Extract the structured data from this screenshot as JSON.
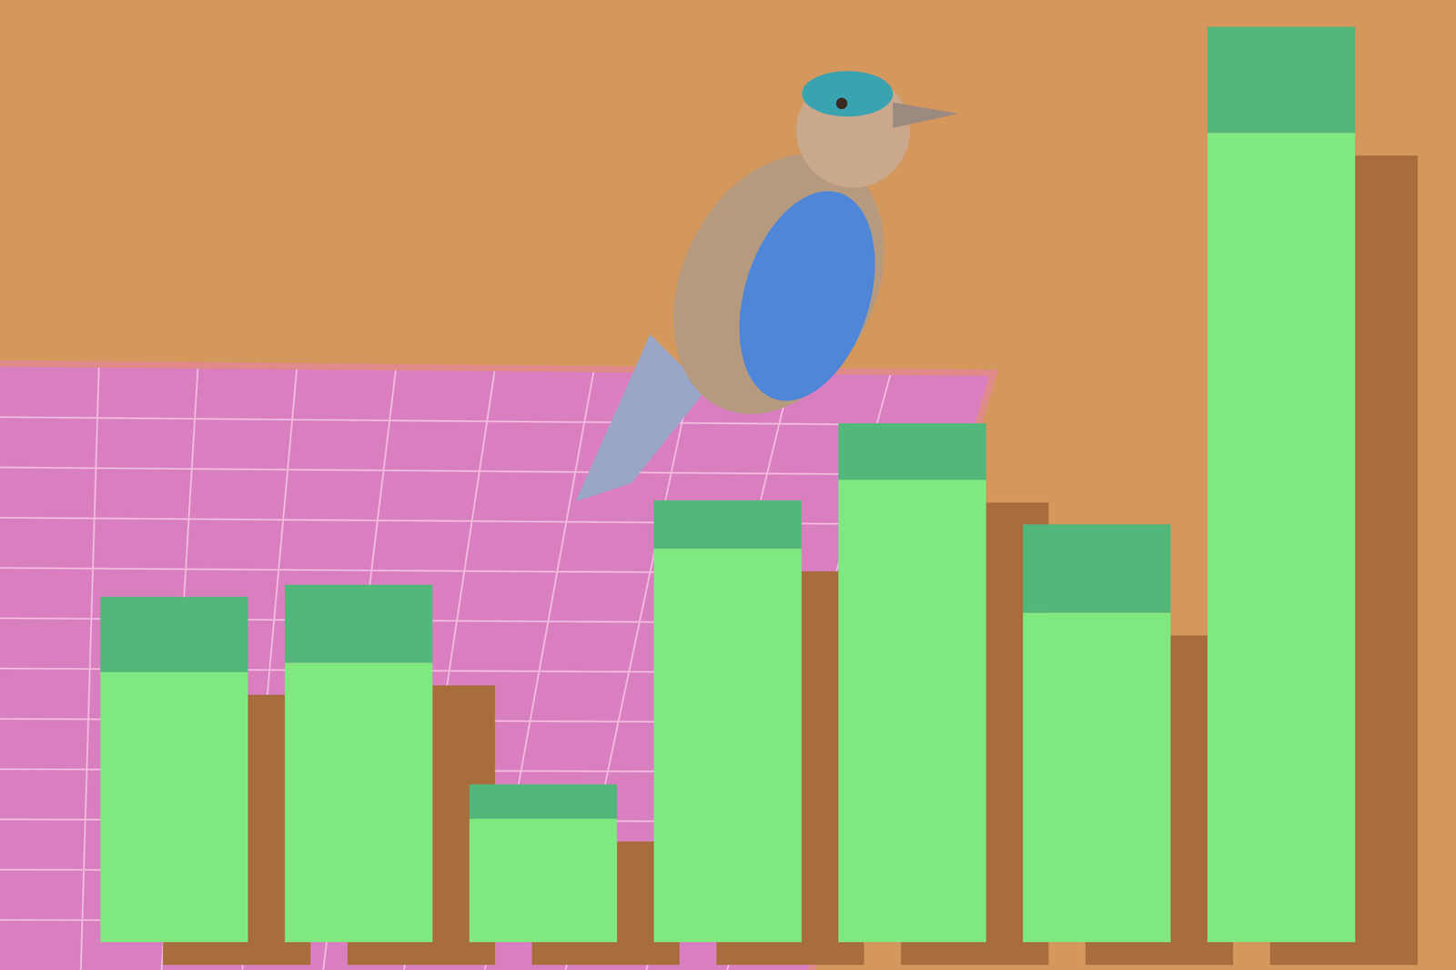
{
  "chart_data": {
    "type": "bar",
    "stacked": true,
    "grid": false,
    "tick_labels": false,
    "categories": [
      null,
      null,
      null,
      null,
      null,
      null,
      null
    ],
    "ylim": [
      0,
      1015
    ],
    "series": [
      {
        "color": "#80E880",
        "values": [
          291,
          301,
          133,
          424,
          498,
          355,
          872
        ]
      },
      {
        "color": "#52B77A",
        "values": [
          81,
          84,
          37,
          52,
          61,
          95,
          114
        ]
      }
    ]
  }
}
